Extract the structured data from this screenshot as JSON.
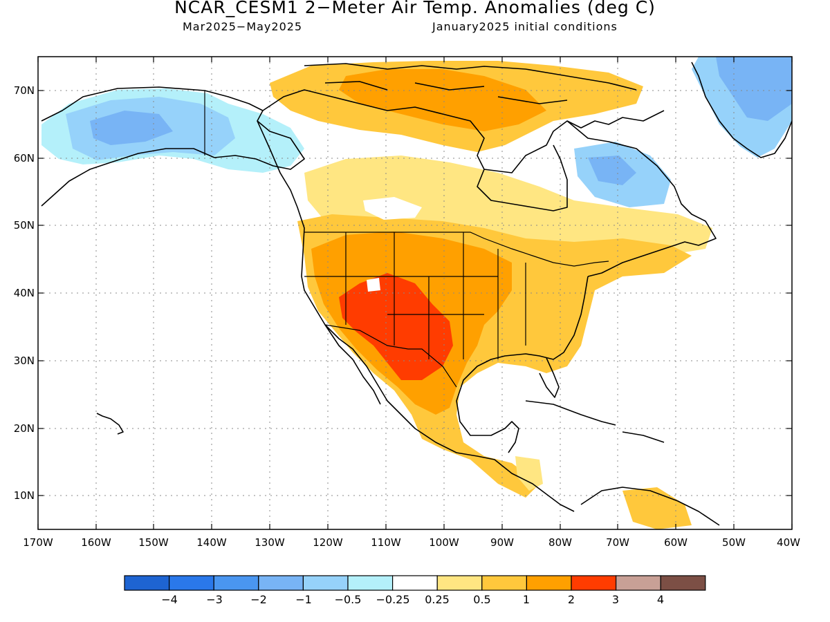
{
  "title": "NCAR_CESM1 2−Meter Air Temp. Anomalies (deg C)",
  "subtitle_period": "Mar2025−May2025",
  "subtitle_init": "January2025 initial conditions",
  "axes": {
    "lat_labels": [
      "70N",
      "60N",
      "50N",
      "40N",
      "30N",
      "20N",
      "10N"
    ],
    "lon_labels": [
      "170W",
      "160W",
      "150W",
      "140W",
      "130W",
      "120W",
      "110W",
      "100W",
      "90W",
      "80W",
      "70W",
      "60W",
      "50W",
      "40W"
    ]
  },
  "colorbar": {
    "colors": [
      "#1e64d2",
      "#2a78ea",
      "#4a96f0",
      "#78b4f5",
      "#96d2fa",
      "#b4f0fa",
      "#ffffff",
      "#ffe682",
      "#ffc83c",
      "#ffa000",
      "#ff3c00",
      "#c8a096",
      "#7c4f45"
    ],
    "labels": [
      "−4",
      "−3",
      "−2",
      "−1",
      "−0.5",
      "−0.25",
      "0.25",
      "0.5",
      "1",
      "2",
      "3",
      "4"
    ]
  }
}
